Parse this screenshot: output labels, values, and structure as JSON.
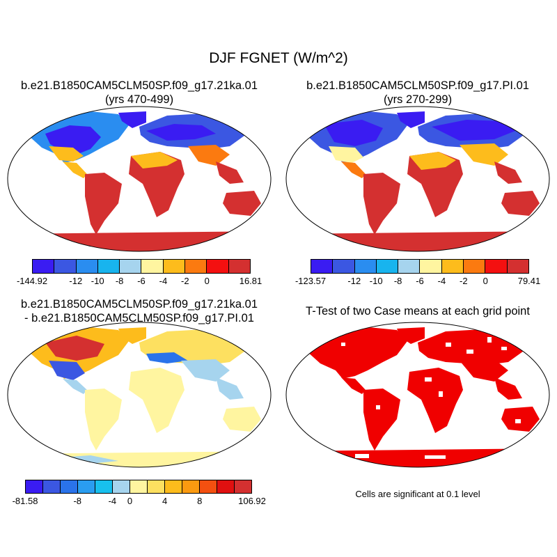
{
  "title": "DJF FGNET (W/m^2)",
  "panels": [
    {
      "title_line1": "b.e21.B1850CAM5CLM50SP.f09_g17.21ka.01",
      "title_line2": "(yrs 470-499)",
      "colorbar": {
        "colors": [
          "#3a1cf2",
          "#3b57e2",
          "#2a8df0",
          "#18b4ee",
          "#a6d4ee",
          "#fff5a0",
          "#fdbc1c",
          "#fb7a10",
          "#f41010",
          "#d43030"
        ],
        "labels": [
          "-144.92",
          "-12",
          "-10",
          "-8",
          "-6",
          "-4",
          "-2",
          "0",
          "16.81"
        ]
      }
    },
    {
      "title_line1": "b.e21.B1850CAM5CLM50SP.f09_g17.PI.01",
      "title_line2": "(yrs 270-299)",
      "colorbar": {
        "colors": [
          "#3a1cf2",
          "#3b57e2",
          "#2a8df0",
          "#18b4ee",
          "#a6d4ee",
          "#fff5a0",
          "#fdbc1c",
          "#fb7a10",
          "#f41010",
          "#d43030"
        ],
        "labels": [
          "-123.57",
          "-12",
          "-10",
          "-8",
          "-6",
          "-4",
          "-2",
          "0",
          "79.41"
        ]
      }
    },
    {
      "title_line1": "b.e21.B1850CAM5CLM50SP.f09_g17.21ka.01",
      "title_line2": "- b.e21.B1850CAM5CLM50SP.f09_g17.PI.01",
      "colorbar": {
        "colors": [
          "#3a1cf2",
          "#3b57e2",
          "#2a73ea",
          "#2a9df0",
          "#18c0ee",
          "#a6d4ee",
          "#fff5a0",
          "#fde060",
          "#fdbc1c",
          "#fb9a10",
          "#f45010",
          "#e01010",
          "#d43030"
        ],
        "labels": [
          "-81.58",
          "-8",
          "-4",
          "0",
          "4",
          "8",
          "106.92"
        ]
      }
    },
    {
      "title_line1": "T-Test of two Case means at each grid point",
      "note": "Cells are significant at 0.1 level"
    }
  ]
}
